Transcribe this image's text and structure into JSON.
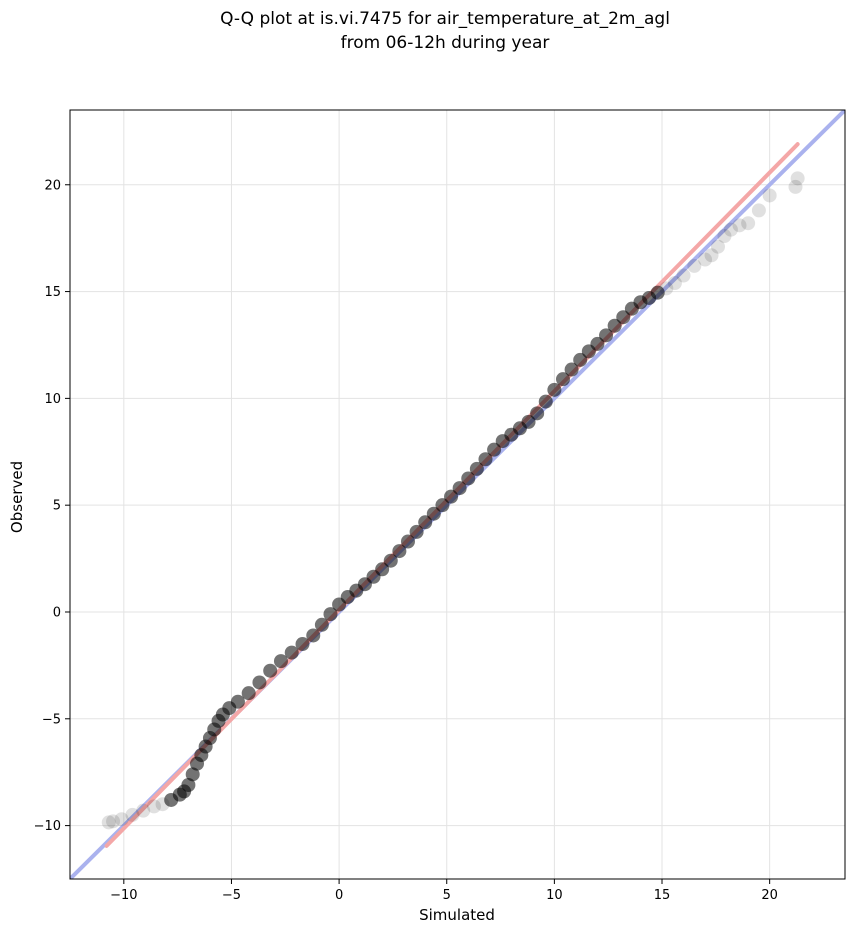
{
  "chart_data": {
    "type": "scatter",
    "title": [
      "Q-Q plot at is.vi.7475 for air_temperature_at_2m_agl",
      "from 06-12h during year"
    ],
    "xlabel": "Simulated",
    "ylabel": "Observed",
    "xlim": [
      -12.5,
      23.5
    ],
    "ylim": [
      -12.5,
      23.5
    ],
    "xticks": [
      -10,
      -5,
      0,
      5,
      10,
      15,
      20
    ],
    "yticks": [
      -10,
      -5,
      0,
      5,
      10,
      15,
      20
    ],
    "tick_labels": [
      "−10",
      "−5",
      "0",
      "5",
      "10",
      "15",
      "20"
    ],
    "grid": true,
    "quantiles": [
      [
        -10.7,
        -9.85
      ],
      [
        -10.5,
        -9.8
      ],
      [
        -10.1,
        -9.7
      ],
      [
        -9.6,
        -9.5
      ],
      [
        -9.1,
        -9.3
      ],
      [
        -8.6,
        -9.1
      ],
      [
        -8.2,
        -9.0
      ],
      [
        -7.8,
        -8.8
      ],
      [
        -7.4,
        -8.55
      ],
      [
        -7.2,
        -8.4
      ],
      [
        -7.0,
        -8.1
      ],
      [
        -6.8,
        -7.6
      ],
      [
        -6.6,
        -7.1
      ],
      [
        -6.4,
        -6.7
      ],
      [
        -6.2,
        -6.3
      ],
      [
        -6.0,
        -5.9
      ],
      [
        -5.8,
        -5.5
      ],
      [
        -5.6,
        -5.1
      ],
      [
        -5.4,
        -4.8
      ],
      [
        -5.1,
        -4.5
      ],
      [
        -4.7,
        -4.2
      ],
      [
        -4.2,
        -3.8
      ],
      [
        -3.7,
        -3.3
      ],
      [
        -3.2,
        -2.75
      ],
      [
        -2.7,
        -2.3
      ],
      [
        -2.2,
        -1.9
      ],
      [
        -1.7,
        -1.5
      ],
      [
        -1.2,
        -1.1
      ],
      [
        -0.8,
        -0.6
      ],
      [
        -0.4,
        -0.1
      ],
      [
        0.0,
        0.35
      ],
      [
        0.4,
        0.7
      ],
      [
        0.8,
        1.0
      ],
      [
        1.2,
        1.3
      ],
      [
        1.6,
        1.65
      ],
      [
        2.0,
        2.0
      ],
      [
        2.4,
        2.4
      ],
      [
        2.8,
        2.85
      ],
      [
        3.2,
        3.3
      ],
      [
        3.6,
        3.75
      ],
      [
        4.0,
        4.2
      ],
      [
        4.4,
        4.6
      ],
      [
        4.8,
        5.0
      ],
      [
        5.2,
        5.4
      ],
      [
        5.6,
        5.8
      ],
      [
        6.0,
        6.25
      ],
      [
        6.4,
        6.7
      ],
      [
        6.8,
        7.15
      ],
      [
        7.2,
        7.6
      ],
      [
        7.6,
        8.0
      ],
      [
        8.0,
        8.3
      ],
      [
        8.4,
        8.6
      ],
      [
        8.8,
        8.9
      ],
      [
        9.2,
        9.3
      ],
      [
        9.6,
        9.85
      ],
      [
        10.0,
        10.4
      ],
      [
        10.4,
        10.9
      ],
      [
        10.8,
        11.35
      ],
      [
        11.2,
        11.8
      ],
      [
        11.6,
        12.2
      ],
      [
        12.0,
        12.55
      ],
      [
        12.4,
        12.95
      ],
      [
        12.8,
        13.4
      ],
      [
        13.2,
        13.8
      ],
      [
        13.6,
        14.2
      ],
      [
        14.0,
        14.5
      ],
      [
        14.4,
        14.7
      ],
      [
        14.8,
        14.95
      ],
      [
        15.2,
        15.15
      ],
      [
        15.6,
        15.4
      ],
      [
        16.0,
        15.75
      ],
      [
        16.5,
        16.2
      ],
      [
        17.0,
        16.5
      ],
      [
        17.3,
        16.7
      ],
      [
        17.6,
        17.1
      ],
      [
        17.9,
        17.6
      ],
      [
        18.2,
        17.9
      ],
      [
        18.6,
        18.1
      ],
      [
        19.0,
        18.2
      ],
      [
        19.5,
        18.8
      ],
      [
        20.0,
        19.5
      ],
      [
        21.2,
        19.9
      ],
      [
        21.3,
        20.3
      ]
    ],
    "lines": [
      {
        "color": "#aab2ee",
        "points": [
          [
            -12.5,
            -12.5
          ],
          [
            23.5,
            23.5
          ]
        ]
      },
      {
        "color": "#f4a7a7",
        "points": [
          [
            -10.8,
            -10.95
          ],
          [
            21.3,
            21.9
          ]
        ]
      }
    ],
    "colors": {
      "points": "#000000",
      "identity": "#aab2ee",
      "fit": "#f4a7a7",
      "grid": "#e3e3e3"
    }
  }
}
